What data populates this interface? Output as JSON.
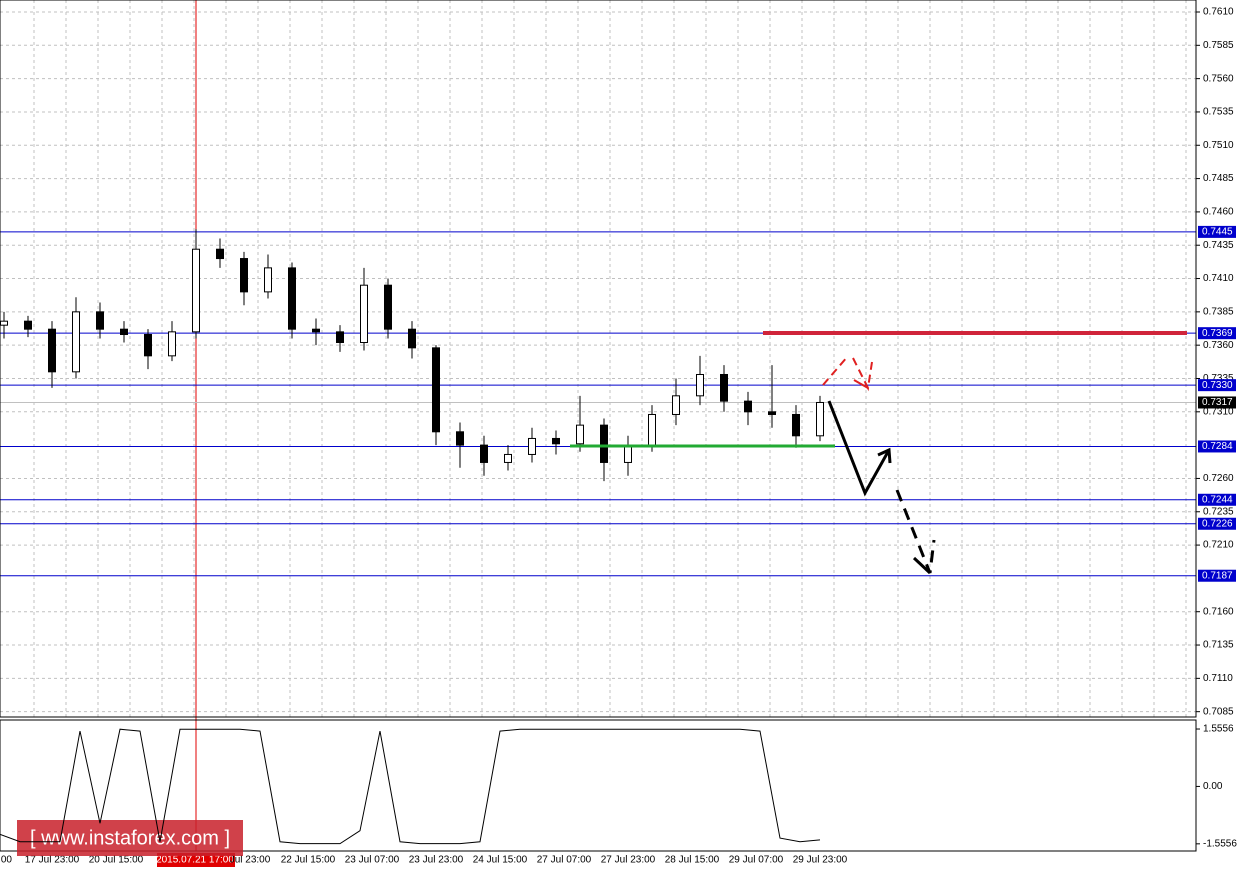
{
  "chart_data": {
    "type": "candlestick",
    "open": [
      0.7375,
      0.7378,
      0.7372,
      0.734,
      0.7385,
      0.7372,
      0.7368,
      0.7352,
      0.737,
      0.7432,
      0.7425,
      0.74,
      0.7418,
      0.7372,
      0.737,
      0.7362,
      0.7405,
      0.7372,
      0.7358,
      0.7295,
      0.7285,
      0.7272,
      0.7278,
      0.729,
      0.7286,
      0.73,
      0.7272,
      0.7285,
      0.7308,
      0.7322,
      0.7338,
      0.7318,
      0.731,
      0.7308,
      0.7292
    ],
    "high": [
      0.7385,
      0.7382,
      0.7378,
      0.7396,
      0.7392,
      0.7378,
      0.7372,
      0.7378,
      0.7447,
      0.744,
      0.743,
      0.7428,
      0.7422,
      0.738,
      0.7375,
      0.7418,
      0.741,
      0.7378,
      0.736,
      0.7302,
      0.7292,
      0.7285,
      0.7298,
      0.7296,
      0.7322,
      0.7305,
      0.7292,
      0.7315,
      0.7335,
      0.7352,
      0.7345,
      0.7325,
      0.7345,
      0.7315,
      0.7322
    ],
    "low": [
      0.7365,
      0.7366,
      0.7328,
      0.7335,
      0.7365,
      0.7362,
      0.7342,
      0.7348,
      0.7365,
      0.7418,
      0.739,
      0.7395,
      0.7365,
      0.736,
      0.7355,
      0.7356,
      0.7365,
      0.735,
      0.7285,
      0.7268,
      0.7262,
      0.7266,
      0.7272,
      0.7278,
      0.728,
      0.7258,
      0.7262,
      0.728,
      0.73,
      0.7315,
      0.731,
      0.73,
      0.7298,
      0.7283,
      0.7288
    ],
    "close": [
      0.7378,
      0.7372,
      0.734,
      0.7385,
      0.7372,
      0.7368,
      0.7352,
      0.737,
      0.7432,
      0.7425,
      0.74,
      0.7418,
      0.7372,
      0.737,
      0.7362,
      0.7405,
      0.7372,
      0.7358,
      0.7295,
      0.7285,
      0.7272,
      0.7278,
      0.729,
      0.7286,
      0.73,
      0.7272,
      0.7285,
      0.7308,
      0.7322,
      0.7338,
      0.7318,
      0.731,
      0.7308,
      0.7292,
      0.7317
    ],
    "ylim": [
      0.7619,
      0.7081
    ],
    "yticks": [
      {
        "value": 0.761,
        "label": "0.7610"
      },
      0.7585,
      {
        "value": 0.756,
        "label": "0.7560"
      },
      0.7535,
      {
        "value": 0.751,
        "label": "0.7510"
      },
      0.7485,
      {
        "value": 0.746,
        "label": "0.7460"
      },
      0.7435,
      {
        "value": 0.741,
        "label": "0.7410"
      },
      0.7385,
      {
        "value": 0.736,
        "label": "0.7360"
      },
      0.7335,
      {
        "value": 0.731,
        "label": "0.7310"
      },
      {
        "value": 0.726,
        "label": "0.7260"
      },
      0.7235,
      {
        "value": 0.721,
        "label": "0.7210"
      },
      {
        "value": 0.716,
        "label": "0.7160"
      },
      0.7135,
      {
        "value": 0.711,
        "label": "0.7110"
      },
      0.7085
    ],
    "grid": true,
    "levels": [
      0.7445,
      0.7369,
      0.733,
      0.7284,
      0.7244,
      0.7226,
      0.7187
    ],
    "level_labels": [
      "0.7445",
      "0.7369",
      "0.7330",
      "0.7284",
      "0.7244",
      "0.7226",
      "0.7187"
    ],
    "current_price": 0.7317,
    "x_labels": [
      ":00",
      "17 Jul 23:00",
      "20 Jul 15:00",
      "2015.07.21 17:00",
      "Jul 23:00",
      "22 Jul 15:00",
      "23 Jul 07:00",
      "23 Jul 23:00",
      "24 Jul 15:00",
      "27 Jul 07:00",
      "27 Jul 23:00",
      "28 Jul 15:00",
      "29 Jul 07:00",
      "29 Jul 23:00"
    ],
    "indicator": {
      "values": [
        -1.3,
        -1.5,
        -1.5,
        -1.5,
        1.5,
        -1.0,
        1.55,
        1.5,
        -1.5,
        1.55,
        1.55,
        1.55,
        1.55,
        1.5,
        -1.5,
        -1.55,
        -1.55,
        -1.55,
        -1.2,
        1.5,
        -1.5,
        -1.55,
        -1.55,
        -1.55,
        -1.5,
        1.5,
        1.55,
        1.55,
        1.55,
        1.55,
        1.55,
        1.55,
        1.55,
        1.55,
        1.55,
        1.55,
        1.55,
        1.55,
        1.5,
        -1.4,
        -1.5,
        -1.45
      ],
      "ylim": [
        1.8,
        -1.75
      ],
      "yticks": [
        1.5556,
        {
          "value": 0,
          "label": "0.00"
        },
        -1.5556
      ]
    },
    "watermark": "[  www.instaforex.com ]"
  }
}
